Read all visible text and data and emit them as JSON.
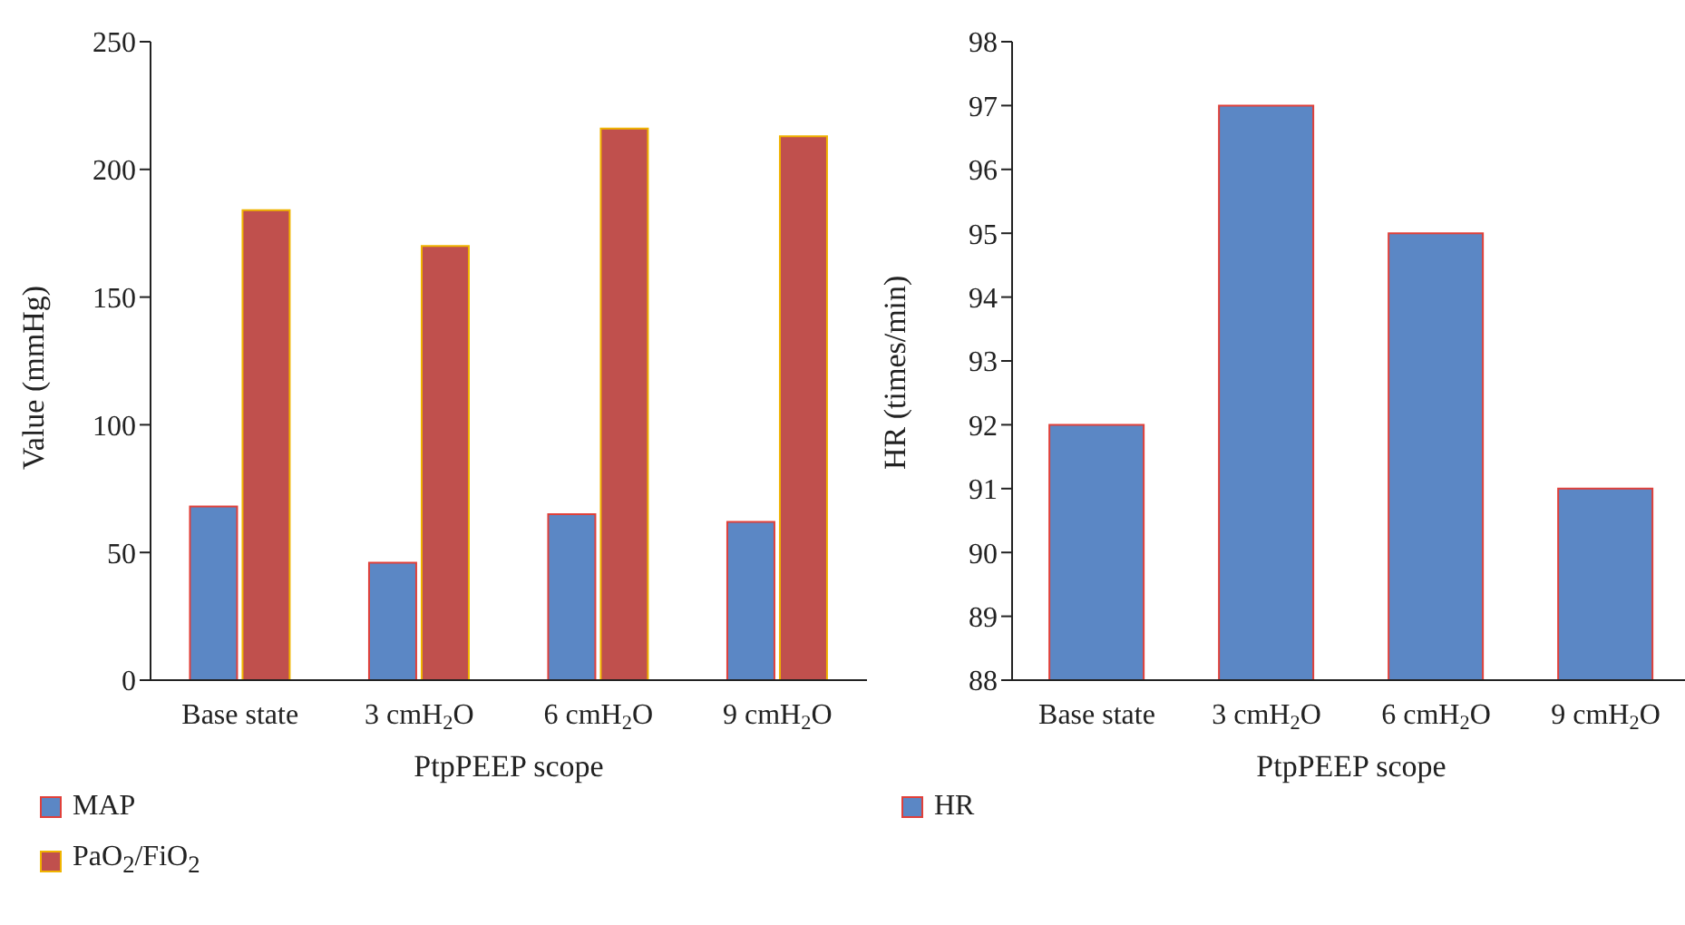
{
  "chart_data": [
    {
      "type": "bar",
      "xlabel": "PtpPEEP scope",
      "ylabel": "Value (mmHg)",
      "categories": [
        "Base state",
        "3 cmH$_{2}$O",
        "6 cmH$_{2}$O",
        "9 cmH$_{2}$O"
      ],
      "series": [
        {
          "name": "MAP",
          "color": "#5b87c5",
          "values": [
            68,
            46,
            65,
            62
          ]
        },
        {
          "name": "PaO$_{2}$/FiO$_{2}$",
          "color": "#c0504d",
          "values": [
            184,
            170,
            216,
            213
          ]
        }
      ],
      "ylim": [
        0,
        250
      ],
      "yticks": [
        0,
        50,
        100,
        150,
        200,
        250
      ],
      "grid": false,
      "legend": "bottom"
    },
    {
      "type": "bar",
      "xlabel": "PtpPEEP scope",
      "ylabel": "HR (times/min)",
      "categories": [
        "Base state",
        "3 cmH$_{2}$O",
        "6 cmH$_{2}$O",
        "9 cmH$_{2}$O"
      ],
      "series": [
        {
          "name": "HR",
          "color": "#5b87c5",
          "values": [
            92,
            97,
            95,
            91
          ]
        }
      ],
      "ylim": [
        88,
        98
      ],
      "yticks": [
        88,
        89,
        90,
        91,
        92,
        93,
        94,
        95,
        96,
        97,
        98
      ],
      "grid": false,
      "legend": "bottom"
    }
  ]
}
